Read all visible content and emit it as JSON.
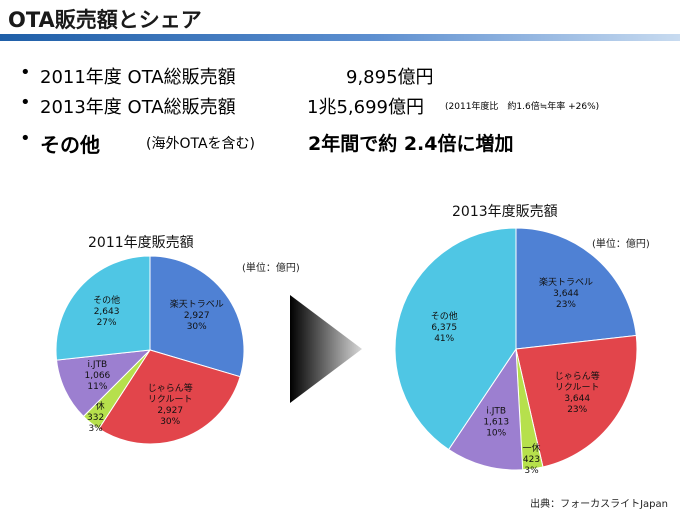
{
  "header": {
    "title": "OTA販売額とシェア"
  },
  "bullets": [
    {
      "dot": "•",
      "label": "2011年度 OTA総販売額",
      "value": "9,895億円"
    },
    {
      "dot": "•",
      "label": "2013年度 OTA総販売額",
      "value": "1兆5,699億円",
      "note": "(2011年度比　約1.6倍≒年率 +26%)"
    },
    {
      "dot": "•",
      "label": "その他",
      "sub": "(海外OTAを含む)",
      "value": "2年間で約 2.4倍に増加"
    }
  ],
  "colors": {
    "rakuten": "#4f81d4",
    "jalan": "#e2454b",
    "ikkyu": "#b6e04c",
    "jtb": "#9c7fd0",
    "other": "#4fc6e4",
    "accent": "#1f5fa8"
  },
  "chart_data": [
    {
      "type": "pie",
      "title": "2011年度販売額",
      "unit": "(単位：億円)",
      "slices": [
        {
          "label": "楽天トラベル",
          "value": 2927,
          "percent": "30%",
          "color": "#4f81d4"
        },
        {
          "label": "じゃらん等\nリクルート",
          "value": 2927,
          "percent": "30%",
          "color": "#e2454b"
        },
        {
          "label": "一休",
          "value": 332,
          "percent": "3%",
          "color": "#b6e04c"
        },
        {
          "label": "i.JTB",
          "value": 1066,
          "percent": "11%",
          "color": "#9c7fd0"
        },
        {
          "label": "その他",
          "value": 2643,
          "percent": "27%",
          "color": "#4fc6e4"
        }
      ]
    },
    {
      "type": "pie",
      "title": "2013年度販売額",
      "unit": "(単位：億円)",
      "slices": [
        {
          "label": "楽天トラベル",
          "value": 3644,
          "percent": "23%",
          "color": "#4f81d4"
        },
        {
          "label": "じゃらん等\nリクルート",
          "value": 3644,
          "percent": "23%",
          "color": "#e2454b"
        },
        {
          "label": "一休",
          "value": 423,
          "percent": "3%",
          "color": "#b6e04c"
        },
        {
          "label": "i.JTB",
          "value": 1613,
          "percent": "10%",
          "color": "#9c7fd0"
        },
        {
          "label": "その他",
          "value": 6375,
          "percent": "41%",
          "color": "#4fc6e4"
        }
      ]
    }
  ],
  "source": "出典：フォーカスライトJapan"
}
